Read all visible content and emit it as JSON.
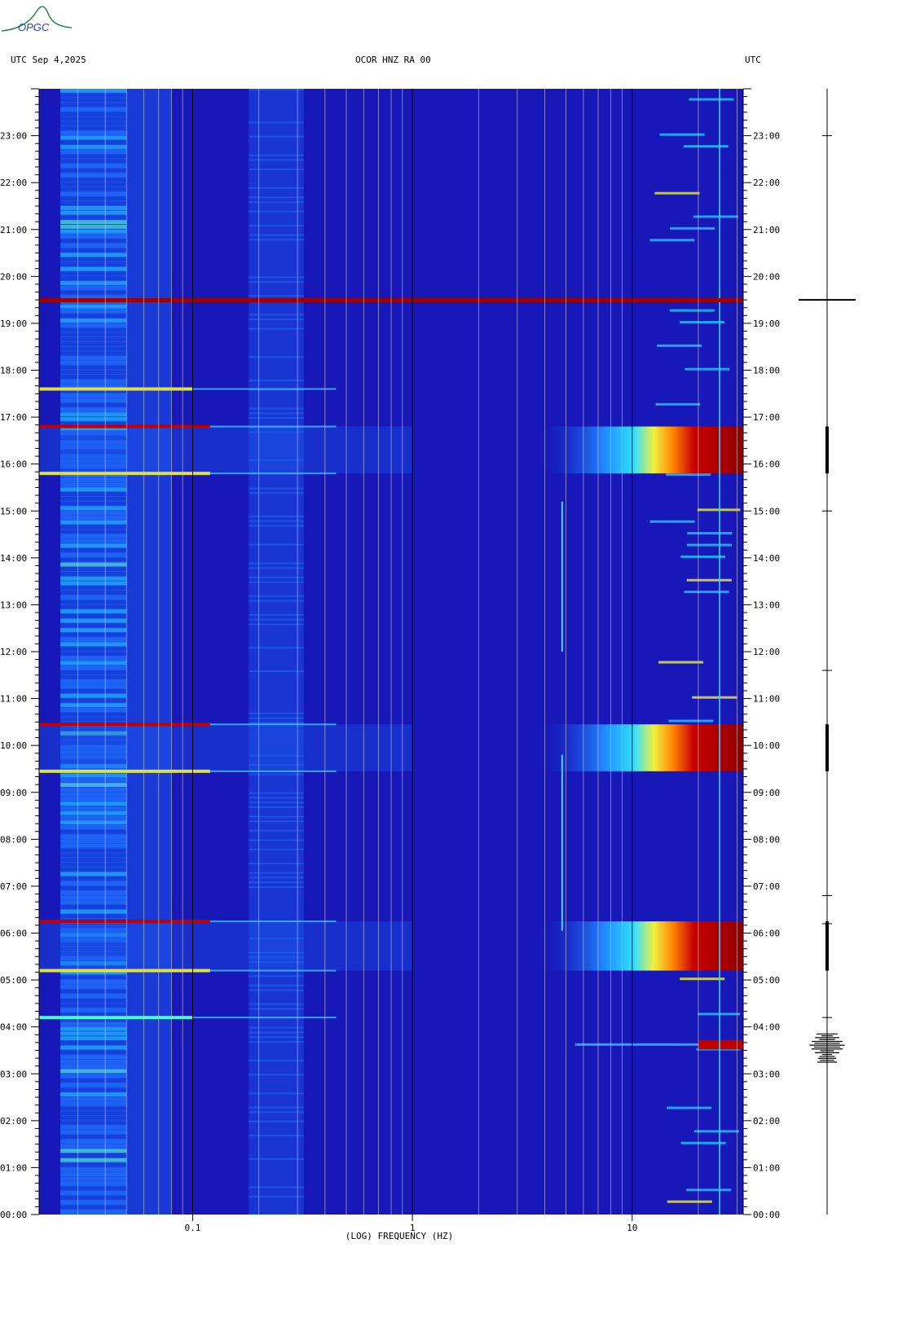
{
  "header": {
    "logo_text": "OPGC",
    "left_label": "UTC  Sep 4,2025",
    "center_label": "OCOR HNZ RA 00",
    "right_label": "UTC"
  },
  "chart_data": {
    "type": "heatmap",
    "title": "OCOR HNZ RA 00",
    "date": "Sep 4,2025",
    "xlabel": "(LOG) FREQUENCY (HZ)",
    "x_scale": "log",
    "xlim": [
      0.02,
      32
    ],
    "x_tick_labels": [
      {
        "value": 0.1,
        "label": "0.1"
      },
      {
        "value": 1,
        "label": "1"
      },
      {
        "value": 10,
        "label": "10"
      }
    ],
    "ylabel": "UTC",
    "ylim_hours": [
      0,
      24
    ],
    "y_tick_labels": [
      "00:00",
      "01:00",
      "02:00",
      "03:00",
      "04:00",
      "05:00",
      "06:00",
      "07:00",
      "08:00",
      "09:00",
      "10:00",
      "11:00",
      "12:00",
      "13:00",
      "14:00",
      "15:00",
      "16:00",
      "17:00",
      "18:00",
      "19:00",
      "20:00",
      "21:00",
      "22:00",
      "23:00"
    ],
    "colormap": [
      "#0a0a6e",
      "#1030d0",
      "#1e70ff",
      "#20c8ff",
      "#60ffd0",
      "#f0f040",
      "#ff8000",
      "#c80000",
      "#780000"
    ],
    "background_color": "#1818b8",
    "high_energy_windows": [
      {
        "start_hour": 5.2,
        "end_hour": 6.25,
        "note": "broadband high-frequency energy"
      },
      {
        "start_hour": 9.45,
        "end_hour": 10.45,
        "note": "broadband high-frequency energy"
      },
      {
        "start_hour": 15.8,
        "end_hour": 16.8,
        "note": "broadband high-frequency energy"
      }
    ],
    "horizontal_lines": [
      {
        "hour": 19.5,
        "color": "#a00000"
      },
      {
        "hour": 16.8,
        "color": "#c00000"
      },
      {
        "hour": 15.8,
        "color": "#e0e040"
      },
      {
        "hour": 10.45,
        "color": "#c00000"
      },
      {
        "hour": 9.45,
        "color": "#e0e040"
      },
      {
        "hour": 6.25,
        "color": "#c00000"
      },
      {
        "hour": 5.2,
        "color": "#e0e040"
      },
      {
        "hour": 4.2,
        "color": "#40ffd0"
      },
      {
        "hour": 17.6,
        "color": "#e0e040"
      }
    ],
    "event_hour": 3.6
  }
}
